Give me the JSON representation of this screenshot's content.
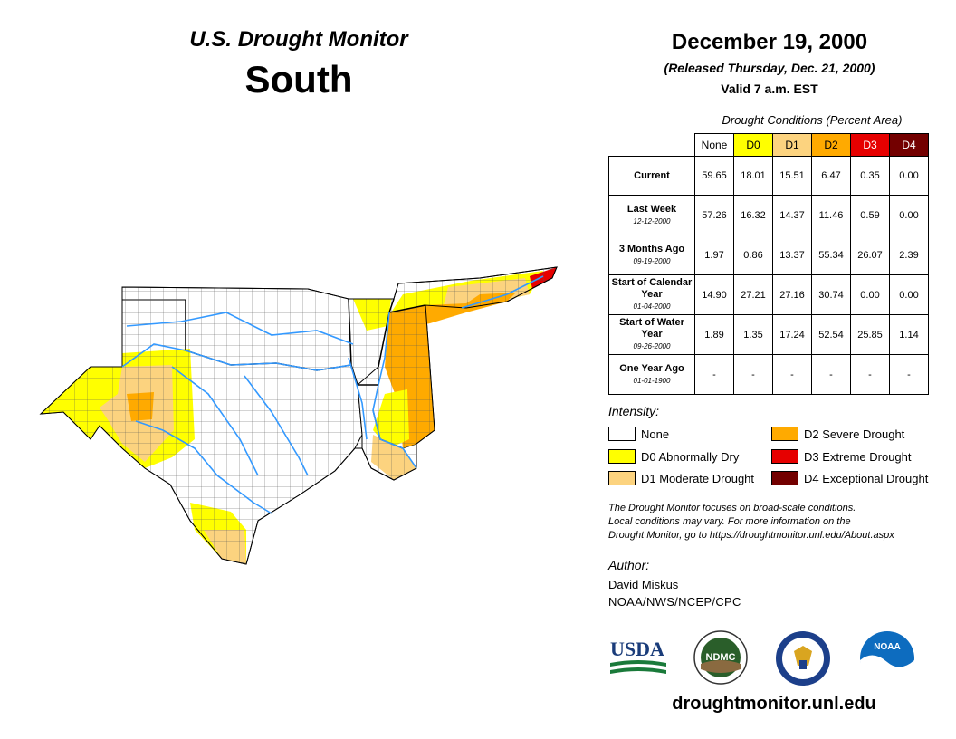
{
  "header": {
    "title": "U.S. Drought Monitor",
    "region": "South"
  },
  "date_block": {
    "date": "December 19, 2000",
    "released": "(Released Thursday, Dec. 21, 2000)",
    "valid": "Valid 7 a.m. EST"
  },
  "conditions_table": {
    "caption": "Drought Conditions (Percent Area)",
    "columns": [
      {
        "label": "None",
        "color": "#ffffff",
        "text_color": "#000000"
      },
      {
        "label": "D0",
        "color": "#ffff00",
        "text_color": "#000000"
      },
      {
        "label": "D1",
        "color": "#fcd37f",
        "text_color": "#000000"
      },
      {
        "label": "D2",
        "color": "#ffaa00",
        "text_color": "#000000"
      },
      {
        "label": "D3",
        "color": "#e60000",
        "text_color": "#ffffff"
      },
      {
        "label": "D4",
        "color": "#730000",
        "text_color": "#ffffff"
      }
    ],
    "rows": [
      {
        "label": "Current",
        "sub": "",
        "values": [
          "59.65",
          "18.01",
          "15.51",
          "6.47",
          "0.35",
          "0.00"
        ]
      },
      {
        "label": "Last Week",
        "sub": "12-12-2000",
        "values": [
          "57.26",
          "16.32",
          "14.37",
          "11.46",
          "0.59",
          "0.00"
        ]
      },
      {
        "label": "3 Months Ago",
        "sub": "09-19-2000",
        "values": [
          "1.97",
          "0.86",
          "13.37",
          "55.34",
          "26.07",
          "2.39"
        ]
      },
      {
        "label": "Start of Calendar Year",
        "sub": "01-04-2000",
        "values": [
          "14.90",
          "27.21",
          "27.16",
          "30.74",
          "0.00",
          "0.00"
        ]
      },
      {
        "label": "Start of Water Year",
        "sub": "09-26-2000",
        "values": [
          "1.89",
          "1.35",
          "17.24",
          "52.54",
          "25.85",
          "1.14"
        ]
      },
      {
        "label": "One Year Ago",
        "sub": "01-01-1900",
        "values": [
          "-",
          "-",
          "-",
          "-",
          "-",
          "-"
        ]
      }
    ]
  },
  "legend": {
    "title": "Intensity:",
    "items": [
      {
        "label": "None",
        "color": "#ffffff"
      },
      {
        "label": "D0 Abnormally Dry",
        "color": "#ffff00"
      },
      {
        "label": "D1 Moderate Drought",
        "color": "#fcd37f"
      },
      {
        "label": "D2 Severe Drought",
        "color": "#ffaa00"
      },
      {
        "label": "D3 Extreme Drought",
        "color": "#e60000"
      },
      {
        "label": "D4 Exceptional Drought",
        "color": "#730000"
      }
    ]
  },
  "note": {
    "line1": "The Drought Monitor focuses on broad-scale conditions.",
    "line2": "Local conditions may vary. For more information on the",
    "line3": "Drought Monitor, go to https://droughtmonitor.unl.edu/About.aspx"
  },
  "author": {
    "title": "Author:",
    "name": "David Miskus",
    "org": "NOAA/NWS/NCEP/CPC"
  },
  "logos": {
    "usda": "USDA",
    "ndmc": "NDMC",
    "noaa": "NOAA"
  },
  "footer": {
    "url": "droughtmonitor.unl.edu"
  },
  "map_colors": {
    "none": "#ffffff",
    "d0": "#ffff00",
    "d1": "#fcd37f",
    "d2": "#ffaa00",
    "d3": "#e60000",
    "d4": "#730000",
    "river": "#3399ff"
  }
}
